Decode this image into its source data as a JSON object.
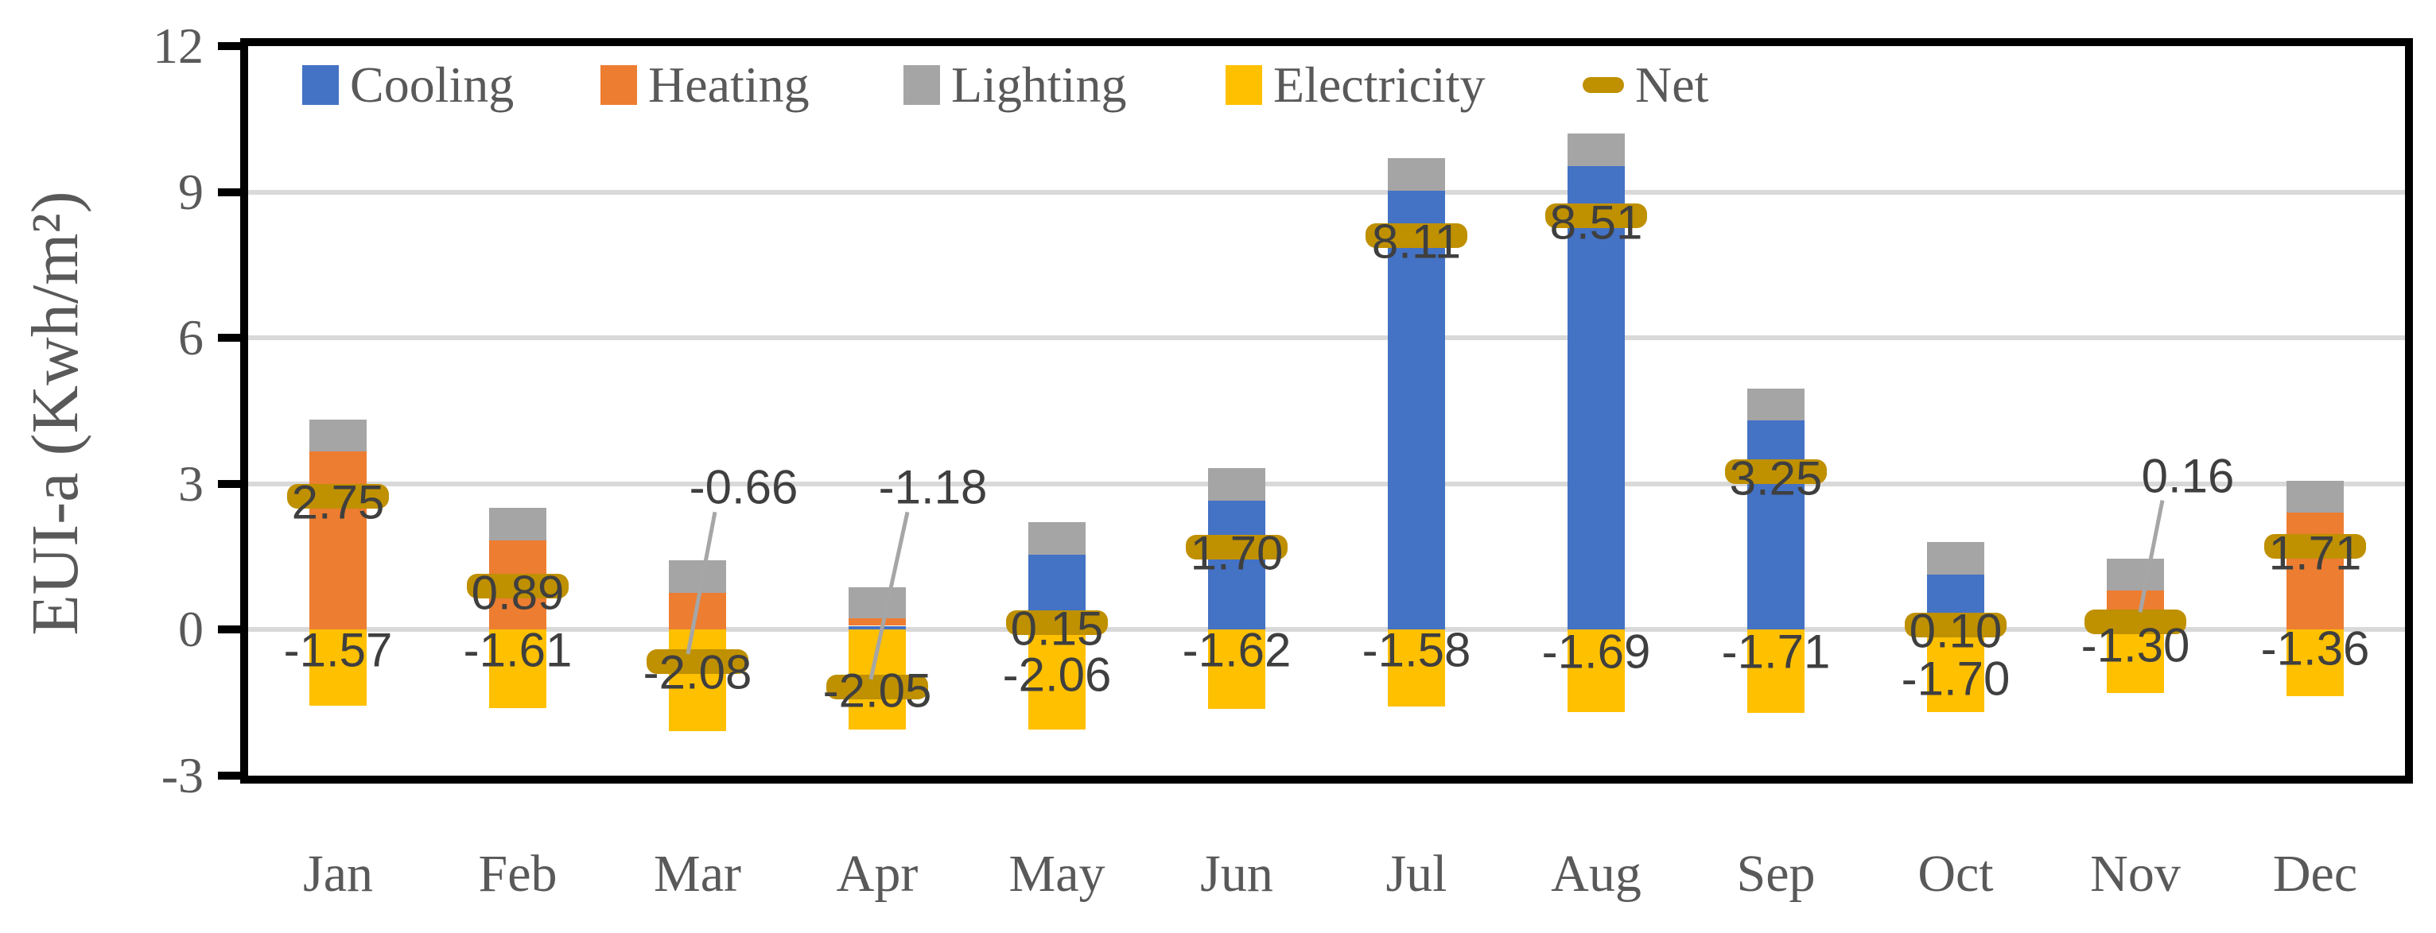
{
  "chart_data": {
    "type": "bar",
    "stacked": true,
    "title": "",
    "xlabel": "",
    "ylabel": "EUI-a (Kwh/m²)",
    "ylim": [
      -3,
      12
    ],
    "ytick_labels": [
      "12",
      "9",
      "6",
      "3",
      "0",
      "-3"
    ],
    "ytick_values": [
      12,
      9,
      6,
      3,
      0,
      -3
    ],
    "gridline_values": [
      9,
      6,
      3,
      0
    ],
    "grid": true,
    "legend_position": "top-inside",
    "categories": [
      "Jan",
      "Feb",
      "Mar",
      "Apr",
      "May",
      "Jun",
      "Jul",
      "Aug",
      "Sep",
      "Oct",
      "Nov",
      "Dec"
    ],
    "series": [
      {
        "name": "Cooling",
        "color": "#4472C4",
        "kind": "bar",
        "values": [
          0,
          0,
          0,
          0.08,
          1.55,
          2.66,
          9.03,
          9.54,
          4.3,
          1.14,
          0,
          0
        ]
      },
      {
        "name": "Heating",
        "color": "#ED7D31",
        "kind": "bar",
        "values": [
          3.66,
          1.84,
          0.76,
          0.16,
          0,
          0,
          0,
          0,
          0,
          0,
          0.8,
          2.41
        ]
      },
      {
        "name": "Lighting",
        "color": "#A5A5A5",
        "kind": "bar",
        "values": [
          0.66,
          0.66,
          0.66,
          0.63,
          0.66,
          0.66,
          0.66,
          0.66,
          0.66,
          0.66,
          0.66,
          0.66
        ]
      },
      {
        "name": "Electricity",
        "color": "#FFC000",
        "kind": "bar",
        "values": [
          -1.57,
          -1.61,
          -2.08,
          -2.05,
          -2.06,
          -1.62,
          -1.58,
          -1.69,
          -1.71,
          -1.7,
          -1.3,
          -1.36
        ]
      },
      {
        "name": "Net",
        "color": "#BF9000",
        "kind": "dash-marker",
        "values": [
          2.75,
          0.89,
          -0.66,
          -1.18,
          0.15,
          1.7,
          8.11,
          8.51,
          3.25,
          0.1,
          0.16,
          1.71
        ]
      }
    ],
    "net_labels": [
      "2.75",
      "0.89",
      "-0.66",
      "-1.18",
      "0.15",
      "1.70",
      "8.11",
      "8.51",
      "3.25",
      "0.10",
      "0.16",
      "1.71"
    ],
    "electricity_labels": [
      "-1.57",
      "-1.61",
      "-2.08",
      "-2.05",
      "-2.06",
      "-1.62",
      "-1.58",
      "-1.69",
      "-1.71",
      "-1.70",
      "-1.30",
      "-1.36"
    ],
    "callout_months": [
      "Mar",
      "Apr",
      "Nov"
    ],
    "colors": {
      "grid": "#D9D9D9",
      "axis_text": "#595959",
      "data_label": "#3F3F3F",
      "leader_line": "#A6A6A6",
      "plot_border": "#000000",
      "background": "#FFFFFF"
    }
  }
}
